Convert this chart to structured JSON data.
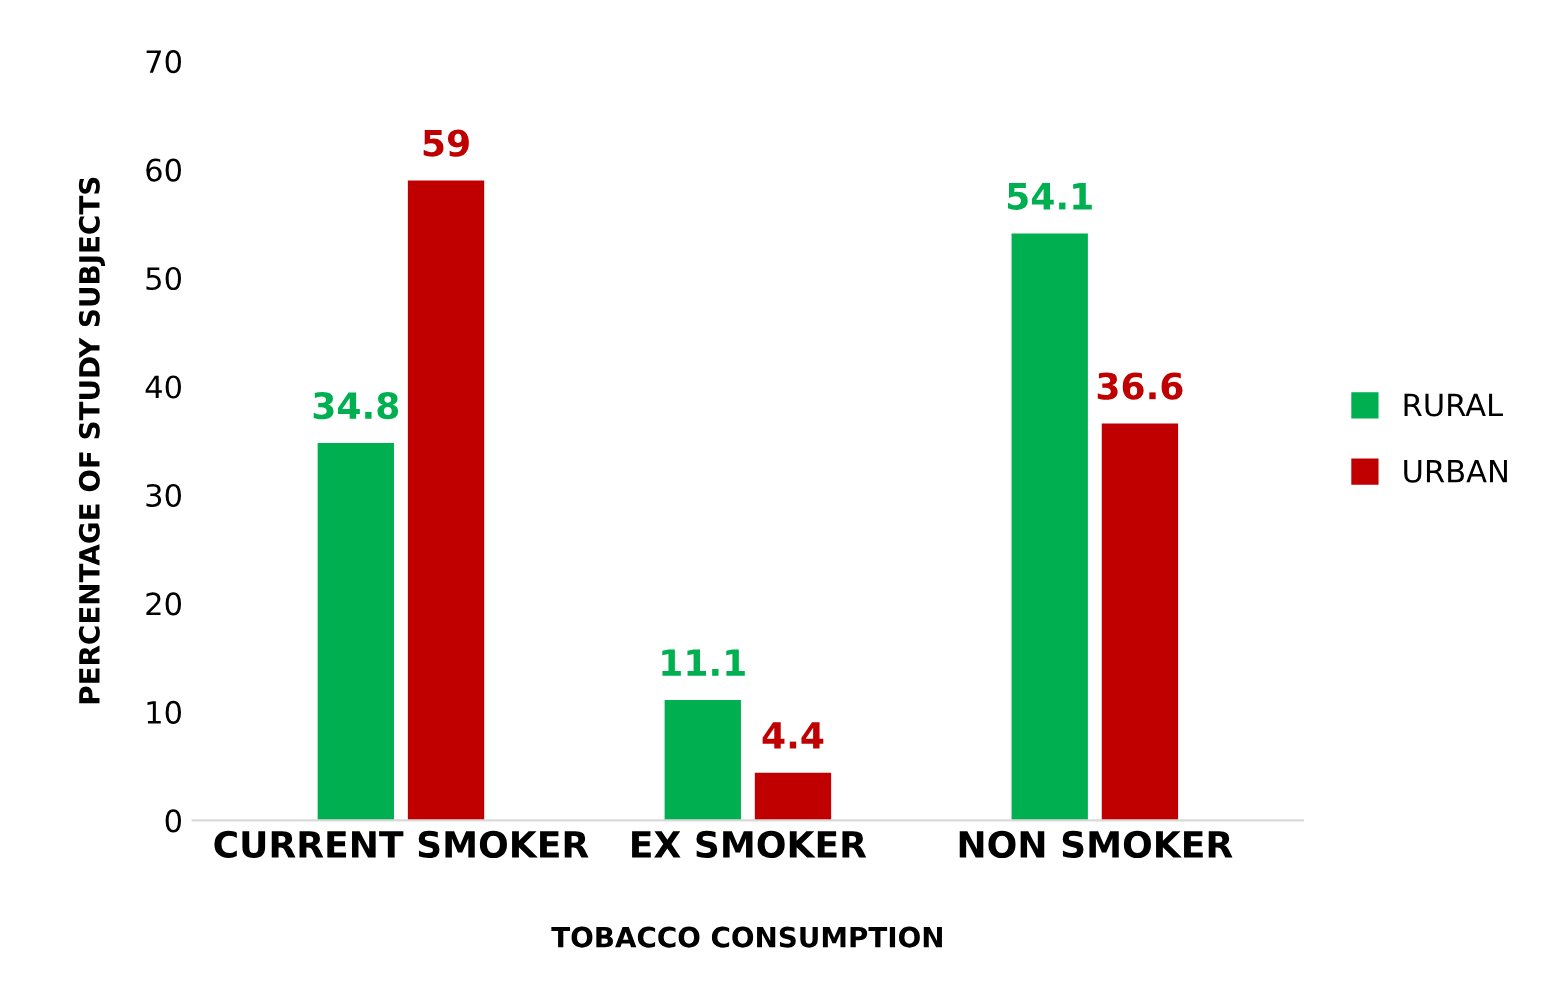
{
  "chart_data": {
    "type": "bar",
    "xlabel": "TOBACCO CONSUMPTION",
    "ylabel": "PERCENTAGE OF STUDY SUBJECTS",
    "categories": [
      "CURRENT SMOKER",
      "EX SMOKER",
      "NON SMOKER"
    ],
    "series": [
      {
        "name": "RURAL",
        "color": "#00b050",
        "values": [
          34.8,
          11.1,
          54.1
        ]
      },
      {
        "name": "URBAN",
        "color": "#c00000",
        "values": [
          59,
          4.4,
          36.6
        ]
      }
    ],
    "ylim": [
      0,
      70
    ],
    "yticks": [
      0,
      10,
      20,
      30,
      40,
      50,
      60,
      70
    ],
    "grid": false,
    "legend": "right",
    "data_labels": true
  }
}
